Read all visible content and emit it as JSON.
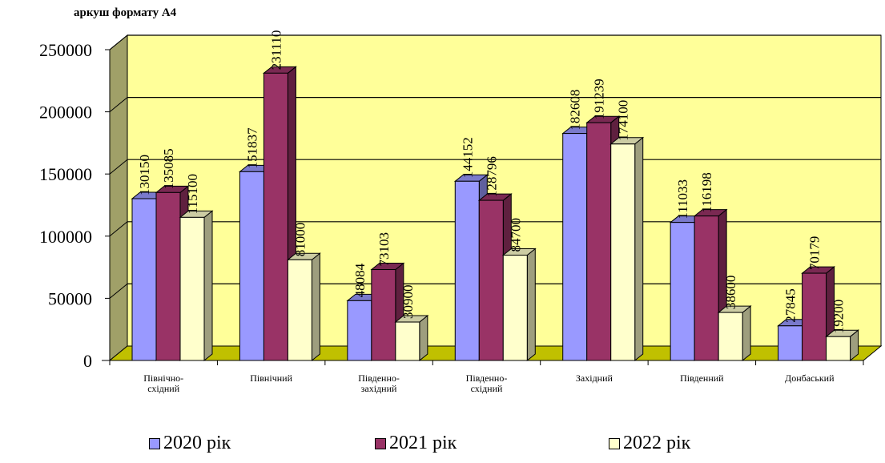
{
  "chart_data": {
    "type": "bar",
    "title": "аркуш формату А4",
    "xlabel": "",
    "ylabel": "",
    "ylim": [
      0,
      250000
    ],
    "yticks": [
      "0",
      "50000",
      "100000",
      "150000",
      "200000",
      "250000"
    ],
    "grid": true,
    "legend_position": "bottom",
    "categories": [
      [
        "Північно-",
        "східний"
      ],
      [
        "Північний"
      ],
      [
        "Південно-",
        "західний"
      ],
      [
        "Південно-",
        "східний"
      ],
      [
        "Західний"
      ],
      [
        "Південний"
      ],
      [
        "Донбаський"
      ]
    ],
    "series": [
      {
        "name": "2020 рік",
        "color": "#9999ff",
        "values": [
          130150,
          151837,
          48084,
          144152,
          182608,
          111033,
          27845
        ],
        "labels": [
          "130150",
          "151837",
          "48084",
          "144152",
          "182608",
          "111033",
          "27845"
        ]
      },
      {
        "name": "2021 рік",
        "color": "#993366",
        "values": [
          135085,
          231110,
          73103,
          128796,
          191239,
          116198,
          70179
        ],
        "labels": [
          "135085",
          "231110",
          "73103",
          "128796",
          "191239",
          "116198",
          "70179"
        ]
      },
      {
        "name": "2022 рік",
        "color": "#ffffcc",
        "values": [
          115100,
          81000,
          30900,
          84700,
          174100,
          38600,
          19200
        ],
        "labels": [
          "115100",
          "81000",
          "30900",
          "84700",
          "174100",
          "38600",
          "19200"
        ]
      }
    ],
    "colors": {
      "wall": "#ffff99",
      "side_wall": "#a0a068",
      "floor": "#c0c000"
    }
  }
}
